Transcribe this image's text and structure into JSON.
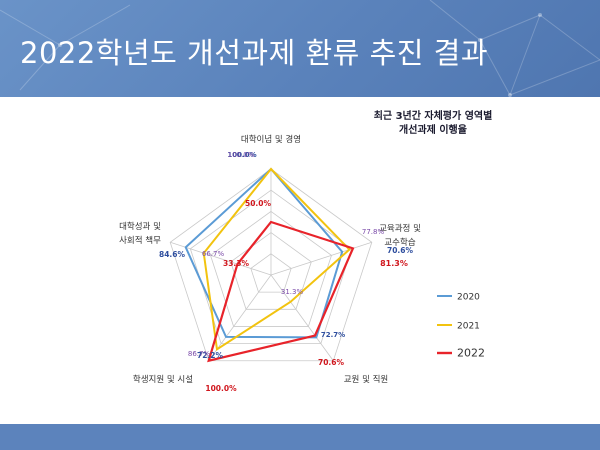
{
  "slide": {
    "title": "2022학년도 개선과제 환류 추진 결과"
  },
  "chart_data": {
    "type": "radar",
    "title_lines": [
      "최근 3년간 자체평가 영역별",
      "개선과제 이행율"
    ],
    "categories": [
      "대학이념 및 경영",
      "교육과정 및 교수학습",
      "교원 및 직원",
      "학생지원 및 시설",
      "대학성과 및 사회적 책무"
    ],
    "category_lines": [
      [
        "대학이념 및 경영"
      ],
      [
        "교육과정 및",
        "교수학습"
      ],
      [
        "교원 및 직원"
      ],
      [
        "학생지원 및 시설"
      ],
      [
        "대학성과 및",
        "사회적 책무"
      ]
    ],
    "ylim": [
      0,
      100
    ],
    "grid_levels": 5,
    "series": [
      {
        "name": "2020",
        "values": [
          100.0,
          70.6,
          72.7,
          72.2,
          84.6
        ],
        "color": "#5b9bd5",
        "labels": [
          "100.0%",
          "70.6%",
          "72.7%",
          "72.2%",
          "84.6%"
        ]
      },
      {
        "name": "2021",
        "values": [
          100.0,
          77.8,
          31.3,
          86.7,
          66.7
        ],
        "color": "#f2c30f",
        "labels": [
          "100.0%",
          "77.8%",
          "31.3%",
          "86.7%",
          "66.7%"
        ]
      },
      {
        "name": "2022",
        "values": [
          50.0,
          81.3,
          70.6,
          100.0,
          33.3
        ],
        "color": "#e8232a",
        "labels": [
          "50.0%",
          "81.3%",
          "70.6%",
          "100.0%",
          "33.3%"
        ]
      }
    ],
    "legend_position": "right"
  }
}
